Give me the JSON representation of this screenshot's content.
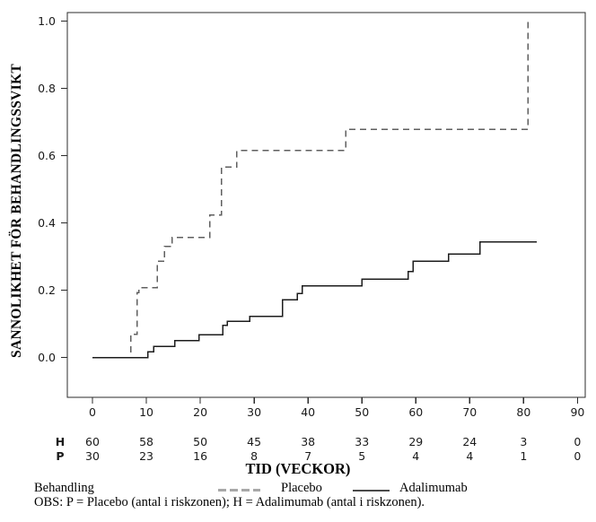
{
  "chart_data": {
    "type": "line",
    "subtype": "kaplan-meier-step",
    "title": "",
    "xlabel": "TID (VECKOR)",
    "ylabel": "SANNOLIKHET FÖR BEHANDLINGSSVIKT",
    "xlim": [
      -4.7,
      91.4
    ],
    "ylim": [
      -0.119,
      1.026
    ],
    "grid": false,
    "legend_position": "bottom",
    "x_ticks": [
      "0",
      "10",
      "20",
      "30",
      "40",
      "50",
      "60",
      "70",
      "80",
      "90"
    ],
    "y_ticks": [
      "0.0",
      "0.2",
      "0.4",
      "0.6",
      "0.8",
      "1.0"
    ],
    "series": [
      {
        "name": "Placebo",
        "line_style": "dashed",
        "color": "#5f5f5f",
        "legend_color": "#a8a8a8",
        "start": [
          0,
          0.0
        ],
        "steps": [
          [
            7.1,
            0.069
          ],
          [
            8.3,
            0.193
          ],
          [
            8.6,
            0.207
          ],
          [
            12.0,
            0.286
          ],
          [
            13.4,
            0.33
          ],
          [
            14.8,
            0.357
          ],
          [
            21.8,
            0.424
          ],
          [
            23.9,
            0.566
          ],
          [
            26.8,
            0.615
          ],
          [
            47.0,
            0.678
          ],
          [
            80.8,
            0.997
          ]
        ],
        "end_week": 80.8
      },
      {
        "name": "Adalimumab",
        "line_style": "solid",
        "color": "#1c1c1c",
        "legend_color": "#4a4a4a",
        "start": [
          0,
          0.0
        ],
        "steps": [
          [
            10.3,
            0.017
          ],
          [
            11.4,
            0.033
          ],
          [
            15.3,
            0.05
          ],
          [
            19.8,
            0.067
          ],
          [
            24.2,
            0.095
          ],
          [
            25.0,
            0.107
          ],
          [
            29.2,
            0.122
          ],
          [
            35.3,
            0.171
          ],
          [
            38.0,
            0.19
          ],
          [
            38.9,
            0.213
          ],
          [
            50.0,
            0.233
          ],
          [
            58.6,
            0.255
          ],
          [
            59.5,
            0.286
          ],
          [
            66.1,
            0.308
          ],
          [
            71.9,
            0.344
          ]
        ],
        "end_week": 82.4
      }
    ],
    "risk_table": {
      "rows": [
        {
          "label": "H",
          "values": [
            "60",
            "58",
            "50",
            "45",
            "38",
            "33",
            "29",
            "24",
            "3",
            "0"
          ]
        },
        {
          "label": "P",
          "values": [
            "30",
            "23",
            "16",
            "8",
            "7",
            "5",
            "4",
            "4",
            "1",
            "0"
          ]
        }
      ]
    },
    "legend_title": "Behandling",
    "footnote": "OBS: P = Placebo (antal i riskzonen); H = Adalimumab (antal i riskzonen)."
  }
}
